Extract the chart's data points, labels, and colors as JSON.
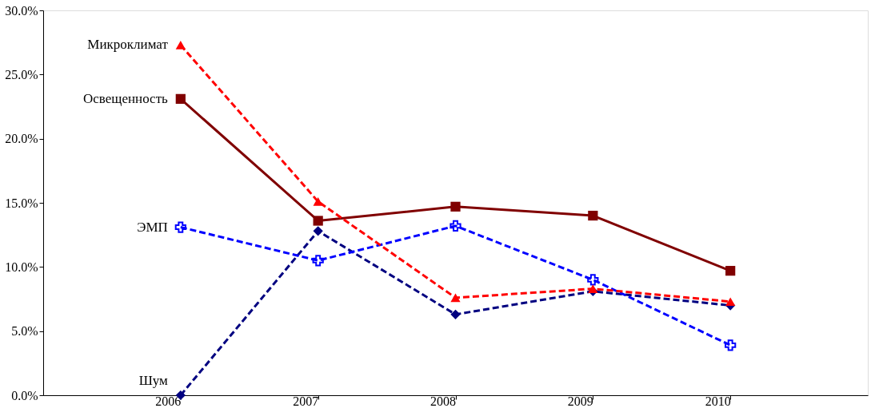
{
  "chart_data": {
    "type": "line",
    "categories": [
      "2006",
      "2007",
      "2008",
      "2009",
      "2010"
    ],
    "series": [
      {
        "name": "Микроклимат",
        "color": "#ff0000",
        "marker": "triangle",
        "line_style": "dashed",
        "values": [
          27.3,
          15.1,
          7.6,
          8.3,
          7.3
        ]
      },
      {
        "name": "Освещенность",
        "color": "#800000",
        "marker": "square",
        "line_style": "solid",
        "values": [
          23.1,
          13.6,
          14.7,
          14.0,
          9.7
        ]
      },
      {
        "name": "ЭМП",
        "color": "#0000ff",
        "marker": "cross",
        "line_style": "dashed",
        "values": [
          13.1,
          10.5,
          13.2,
          9.0,
          3.9
        ]
      },
      {
        "name": "Шум",
        "color": "#000080",
        "marker": "diamond",
        "line_style": "dashed",
        "values": [
          0.0,
          12.8,
          6.3,
          8.1,
          7.0
        ]
      }
    ],
    "ylim": [
      0,
      30
    ],
    "yticks": [
      {
        "value": 0,
        "label": "0.0%"
      },
      {
        "value": 5,
        "label": "5.0%"
      },
      {
        "value": 10,
        "label": "10.0%"
      },
      {
        "value": 15,
        "label": "15.0%"
      },
      {
        "value": 20,
        "label": "20.0%"
      },
      {
        "value": 25,
        "label": "25.0%"
      },
      {
        "value": 30,
        "label": "30.0%"
      }
    ],
    "grid": false,
    "legend": false
  }
}
